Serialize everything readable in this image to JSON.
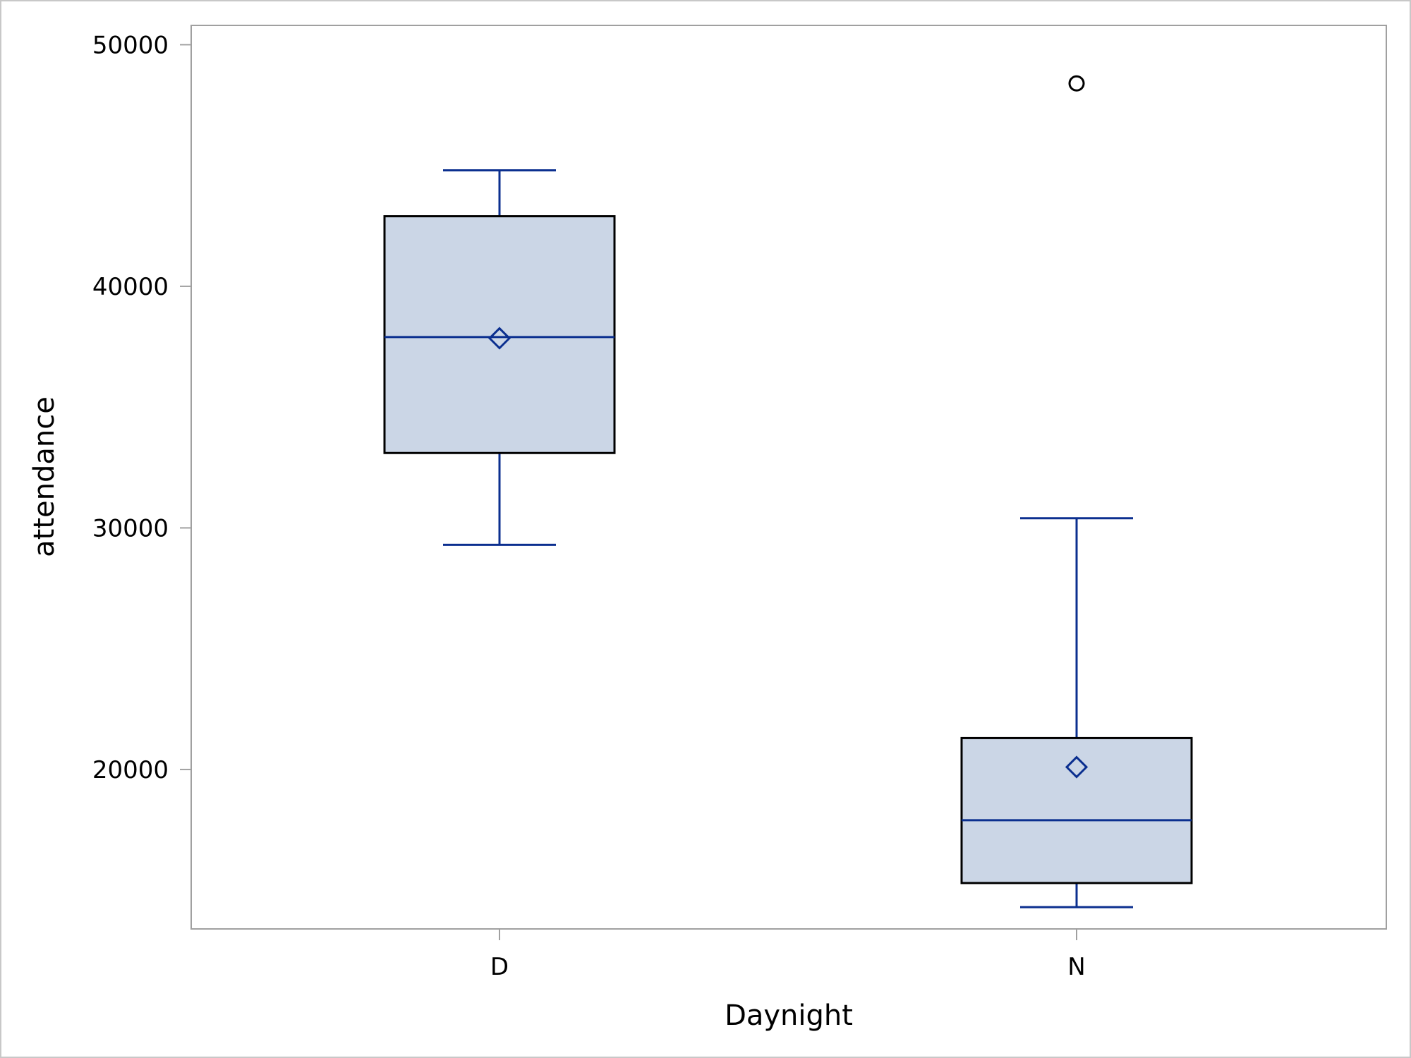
{
  "chart_data": {
    "type": "box",
    "title": "",
    "xlabel": "Daynight",
    "ylabel": "attendance",
    "ylim": [
      13400,
      50800
    ],
    "yticks": [
      20000,
      30000,
      40000,
      50000
    ],
    "categories": [
      "D",
      "N"
    ],
    "boxes": [
      {
        "category": "D",
        "whisker_low": 29300,
        "q1": 33100,
        "median": 37900,
        "mean": 37850,
        "q3": 42900,
        "whisker_high": 44800,
        "outliers": []
      },
      {
        "category": "N",
        "whisker_low": 14300,
        "q1": 15300,
        "median": 17900,
        "mean": 20100,
        "q3": 21300,
        "whisker_high": 30400,
        "outliers": [
          48400
        ]
      }
    ],
    "grid": false,
    "legend": "none",
    "colors": {
      "box_fill": "#cbd6e6",
      "box_edge": "#000000",
      "line": "#0b2f8f",
      "outlier": "#000000",
      "axis": "#a0a0a0"
    }
  }
}
